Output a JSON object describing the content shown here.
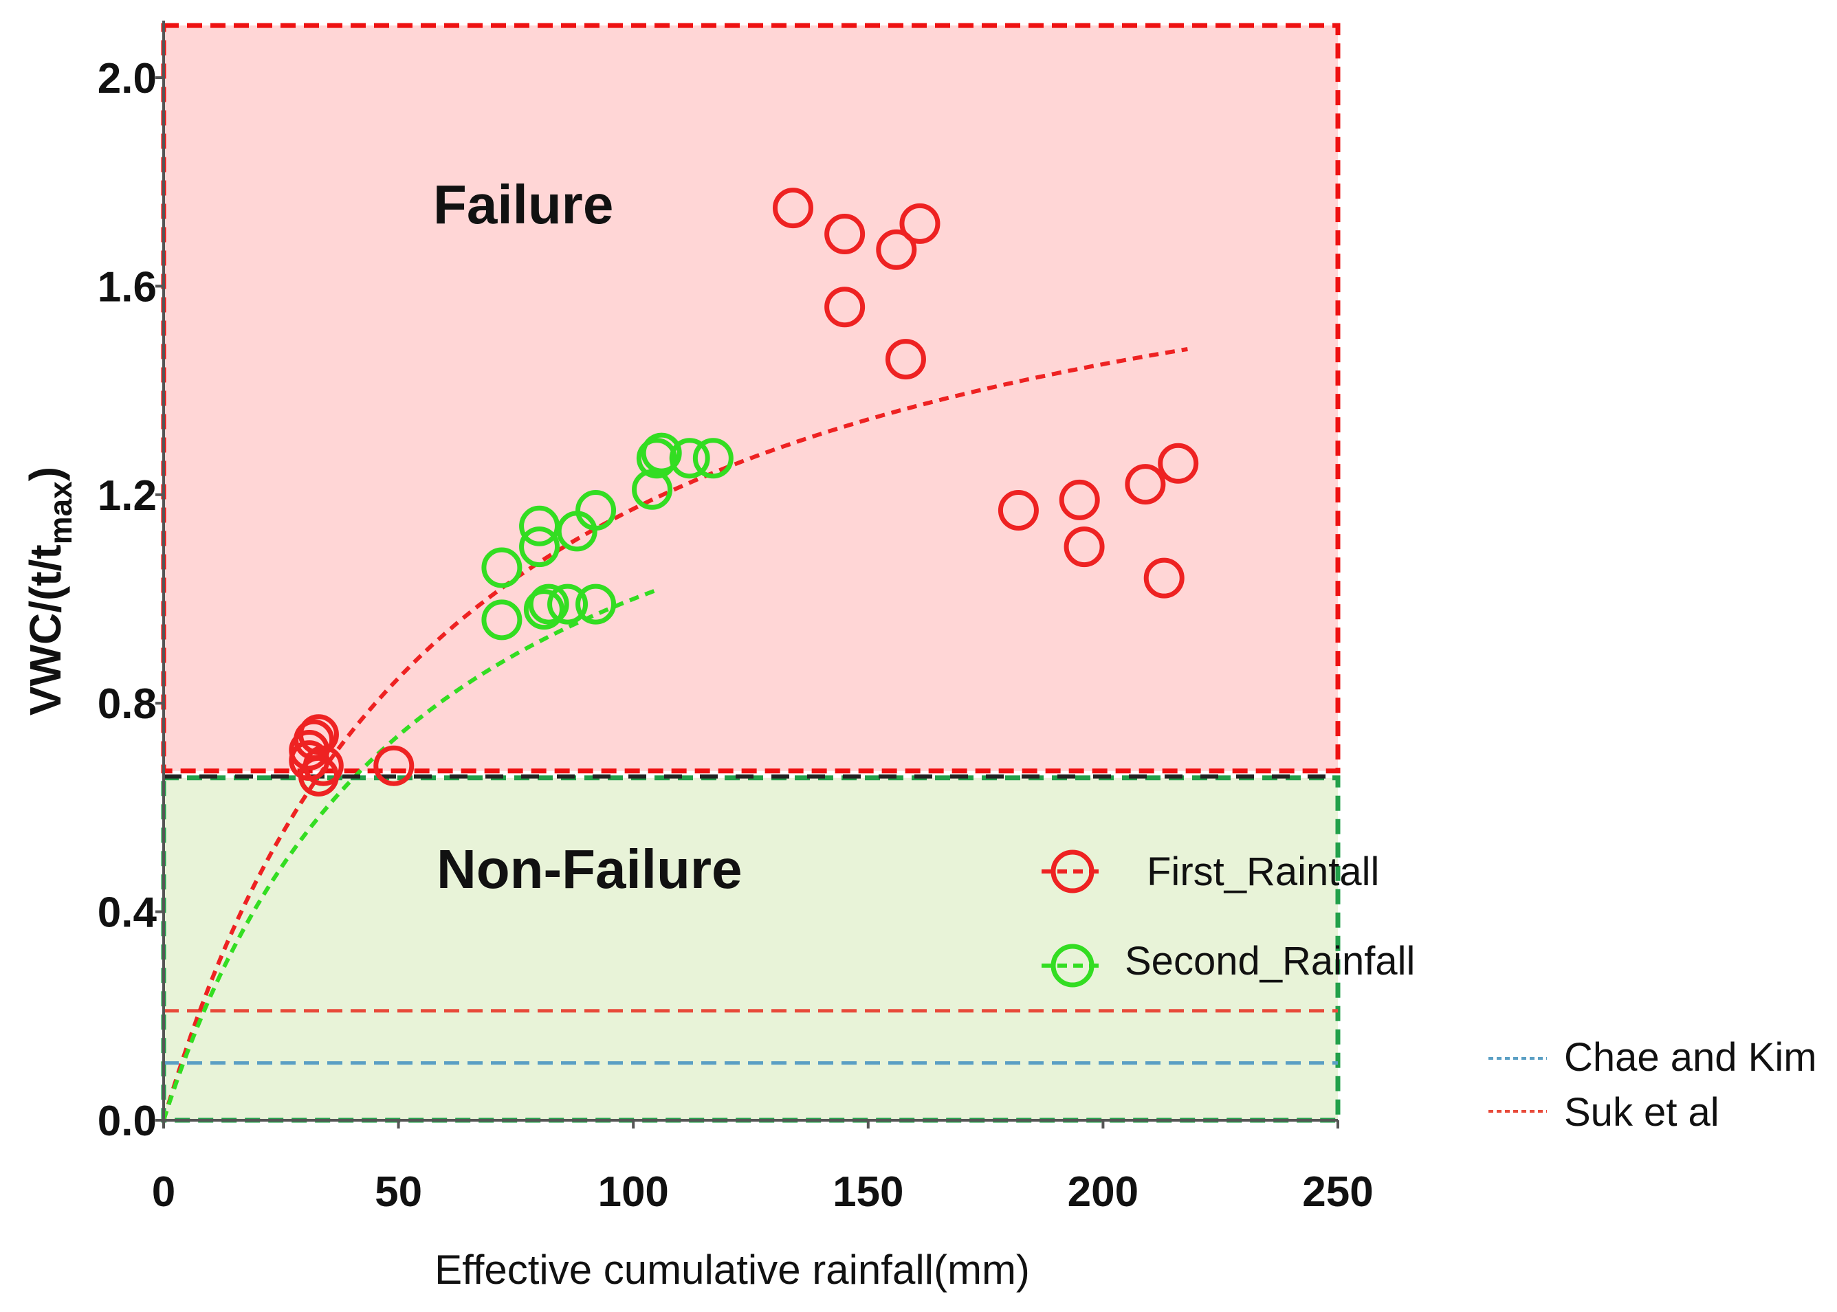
{
  "chart_data": {
    "type": "scatter",
    "title": "",
    "xlabel": "Effective cumulative rainfall(mm)",
    "ylabel_main": "VWC/(t/t",
    "ylabel_sub": "max",
    "ylabel_end": ")",
    "xlim": [
      0,
      250
    ],
    "ylim": [
      0,
      2.0
    ],
    "xticks": [
      0,
      50,
      100,
      150,
      200,
      250
    ],
    "yticks": [
      0.0,
      0.4,
      0.8,
      1.2,
      1.6,
      2.0
    ],
    "xtick_labels": [
      "0",
      "50",
      "100",
      "150",
      "200",
      "250"
    ],
    "ytick_labels": [
      "0.0",
      "0.4",
      "0.8",
      "1.2",
      "1.6",
      "2.0"
    ],
    "regions": [
      {
        "name": "Failure",
        "label": "Failure",
        "y_from": 0.67,
        "y_to": 2.1,
        "color": "#ffd6d6",
        "border": "#ee1111"
      },
      {
        "name": "Non-Failure",
        "label": "Non-Failure",
        "y_from": 0.0,
        "y_to": 0.67,
        "color": "#e8f3d8",
        "border": "#22a04a"
      }
    ],
    "threshold_line": {
      "y": 0.67,
      "color": "#222222"
    },
    "series": [
      {
        "name": "First_Raintall",
        "color": "#ee2222",
        "points": [
          [
            31,
            0.71
          ],
          [
            32,
            0.73
          ],
          [
            33,
            0.74
          ],
          [
            31,
            0.69
          ],
          [
            34,
            0.68
          ],
          [
            33,
            0.66
          ],
          [
            49,
            0.68
          ],
          [
            134,
            1.75
          ],
          [
            145,
            1.7
          ],
          [
            156,
            1.67
          ],
          [
            161,
            1.72
          ],
          [
            145,
            1.56
          ],
          [
            158,
            1.46
          ],
          [
            182,
            1.17
          ],
          [
            195,
            1.19
          ],
          [
            196,
            1.1
          ],
          [
            209,
            1.22
          ],
          [
            216,
            1.26
          ],
          [
            213,
            1.04
          ]
        ],
        "fit": {
          "a": 1.9,
          "b": 62
        }
      },
      {
        "name": "Second_Rainfall",
        "color": "#33dd22",
        "points": [
          [
            72,
            1.06
          ],
          [
            72,
            0.96
          ],
          [
            80,
            1.1
          ],
          [
            80,
            1.14
          ],
          [
            81,
            0.98
          ],
          [
            82,
            0.99
          ],
          [
            86,
            0.99
          ],
          [
            88,
            1.13
          ],
          [
            92,
            0.99
          ],
          [
            92,
            1.17
          ],
          [
            104,
            1.21
          ],
          [
            105,
            1.27
          ],
          [
            106,
            1.28
          ],
          [
            112,
            1.27
          ],
          [
            117,
            1.27
          ]
        ],
        "fit": {
          "a": 1.55,
          "b": 55
        }
      }
    ],
    "reference_lines": [
      {
        "name": "Chae and Kim",
        "y": 0.11,
        "color": "#5a9fc4"
      },
      {
        "name": "Suk et al",
        "y": 0.21,
        "color": "#e84a3a"
      }
    ]
  }
}
